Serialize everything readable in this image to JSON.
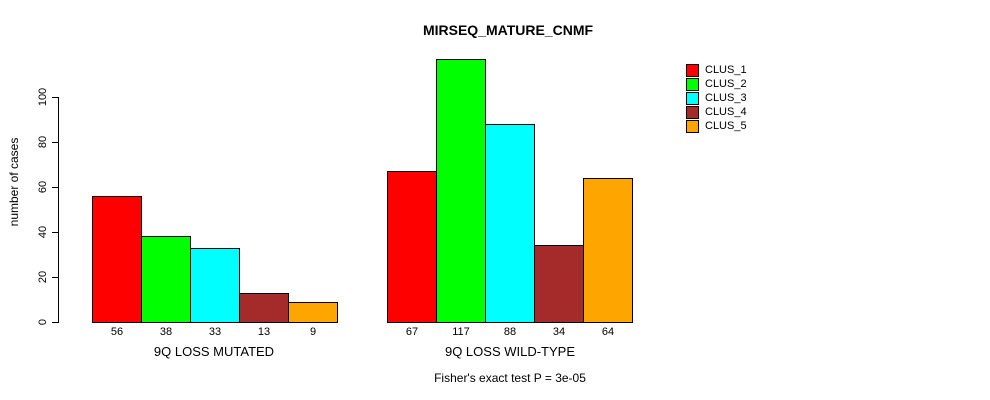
{
  "chart_data": {
    "type": "bar",
    "title": "MIRSEQ_MATURE_CNMF",
    "ylabel": "number of cases",
    "xlabel": "",
    "categories": [
      "9Q LOSS MUTATED",
      "9Q LOSS WILD-TYPE"
    ],
    "series": [
      {
        "name": "CLUS_1",
        "color": "#ff0000",
        "values": [
          56,
          67
        ]
      },
      {
        "name": "CLUS_2",
        "color": "#00ff00",
        "values": [
          38,
          117
        ]
      },
      {
        "name": "CLUS_3",
        "color": "#00ffff",
        "values": [
          33,
          88
        ]
      },
      {
        "name": "CLUS_4",
        "color": "#a52a2a",
        "values": [
          13,
          34
        ]
      },
      {
        "name": "CLUS_5",
        "color": "#ffa500",
        "values": [
          9,
          64
        ]
      }
    ],
    "bar_value_labels": [
      [
        56,
        38,
        33,
        13,
        9
      ],
      [
        67,
        117,
        88,
        34,
        64
      ]
    ],
    "yticks": [
      0,
      20,
      40,
      60,
      80,
      100
    ],
    "ylim": [
      0,
      100
    ],
    "grid": false,
    "legend_position": "right",
    "annotation": "Fisher's exact test P = 3e-05",
    "colors": {
      "bar_border": "#000000",
      "axis": "#000000",
      "text": "#000000",
      "background": "#ffffff"
    }
  }
}
